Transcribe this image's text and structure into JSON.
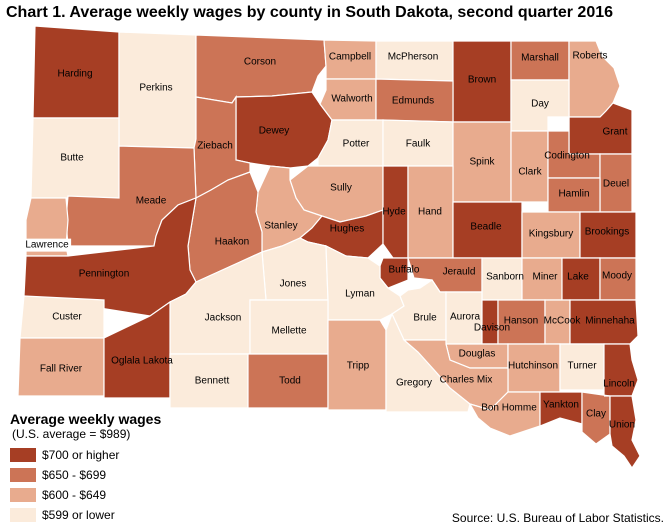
{
  "title": "Chart 1. Average weekly wages by county in South Dakota, second quarter 2016",
  "legend": {
    "title": "Average weekly wages",
    "subtitle": "(U.S. average = $989)",
    "items": [
      {
        "label": "$700 or higher",
        "color": "#a63e24"
      },
      {
        "label": "$650 - $699",
        "color": "#cc7456"
      },
      {
        "label": "$600 - $649",
        "color": "#e8ab8e"
      },
      {
        "label": "$599 or lower",
        "color": "#fbebdb"
      }
    ]
  },
  "source": "Source: U.S. Bureau of Labor Statistics.",
  "counties": [
    {
      "name": "Harding",
      "category": 0
    },
    {
      "name": "Perkins",
      "category": 3
    },
    {
      "name": "Corson",
      "category": 1
    },
    {
      "name": "Campbell",
      "category": 2
    },
    {
      "name": "McPherson",
      "category": 3
    },
    {
      "name": "Brown",
      "category": 0
    },
    {
      "name": "Marshall",
      "category": 1
    },
    {
      "name": "Roberts",
      "category": 2
    },
    {
      "name": "Butte",
      "category": 3
    },
    {
      "name": "Dewey",
      "category": 0
    },
    {
      "name": "Ziebach",
      "category": 1
    },
    {
      "name": "Walworth",
      "category": 2
    },
    {
      "name": "Edmunds",
      "category": 1
    },
    {
      "name": "Day",
      "category": 3
    },
    {
      "name": "Grant",
      "category": 0
    },
    {
      "name": "Potter",
      "category": 3
    },
    {
      "name": "Faulk",
      "category": 3
    },
    {
      "name": "Spink",
      "category": 2
    },
    {
      "name": "Clark",
      "category": 2
    },
    {
      "name": "Codington",
      "category": 1
    },
    {
      "name": "Deuel",
      "category": 1
    },
    {
      "name": "Meade",
      "category": 1
    },
    {
      "name": "Sully",
      "category": 2
    },
    {
      "name": "Hamlin",
      "category": 1
    },
    {
      "name": "Lawrence",
      "category": 2
    },
    {
      "name": "Stanley",
      "category": 2
    },
    {
      "name": "Hughes",
      "category": 0
    },
    {
      "name": "Hyde",
      "category": 0
    },
    {
      "name": "Hand",
      "category": 2
    },
    {
      "name": "Beadle",
      "category": 0
    },
    {
      "name": "Kingsbury",
      "category": 2
    },
    {
      "name": "Brookings",
      "category": 0
    },
    {
      "name": "Haakon",
      "category": 1
    },
    {
      "name": "Pennington",
      "category": 0
    },
    {
      "name": "Buffalo",
      "category": 0
    },
    {
      "name": "Jerauld",
      "category": 1
    },
    {
      "name": "Sanborn",
      "category": 3
    },
    {
      "name": "Miner",
      "category": 2
    },
    {
      "name": "Lake",
      "category": 0
    },
    {
      "name": "Moody",
      "category": 1
    },
    {
      "name": "Jones",
      "category": 3
    },
    {
      "name": "Lyman",
      "category": 3
    },
    {
      "name": "Custer",
      "category": 3
    },
    {
      "name": "Jackson",
      "category": 3
    },
    {
      "name": "Brule",
      "category": 3
    },
    {
      "name": "Aurora",
      "category": 3
    },
    {
      "name": "Davison",
      "category": 0
    },
    {
      "name": "Hanson",
      "category": 1
    },
    {
      "name": "McCook",
      "category": 2
    },
    {
      "name": "Minnehaha",
      "category": 0
    },
    {
      "name": "Mellette",
      "category": 3
    },
    {
      "name": "Douglas",
      "category": 2
    },
    {
      "name": "Hutchinson",
      "category": 2
    },
    {
      "name": "Turner",
      "category": 3
    },
    {
      "name": "Fall River",
      "category": 2
    },
    {
      "name": "Oglala Lakota",
      "category": 0
    },
    {
      "name": "Bennett",
      "category": 3
    },
    {
      "name": "Todd",
      "category": 1
    },
    {
      "name": "Tripp",
      "category": 2
    },
    {
      "name": "Gregory",
      "category": 3
    },
    {
      "name": "Charles Mix",
      "category": 2
    },
    {
      "name": "Lincoln",
      "category": 0
    },
    {
      "name": "Bon Homme",
      "category": 2
    },
    {
      "name": "Yankton",
      "category": 0
    },
    {
      "name": "Clay",
      "category": 1
    },
    {
      "name": "Union",
      "category": 0
    }
  ]
}
